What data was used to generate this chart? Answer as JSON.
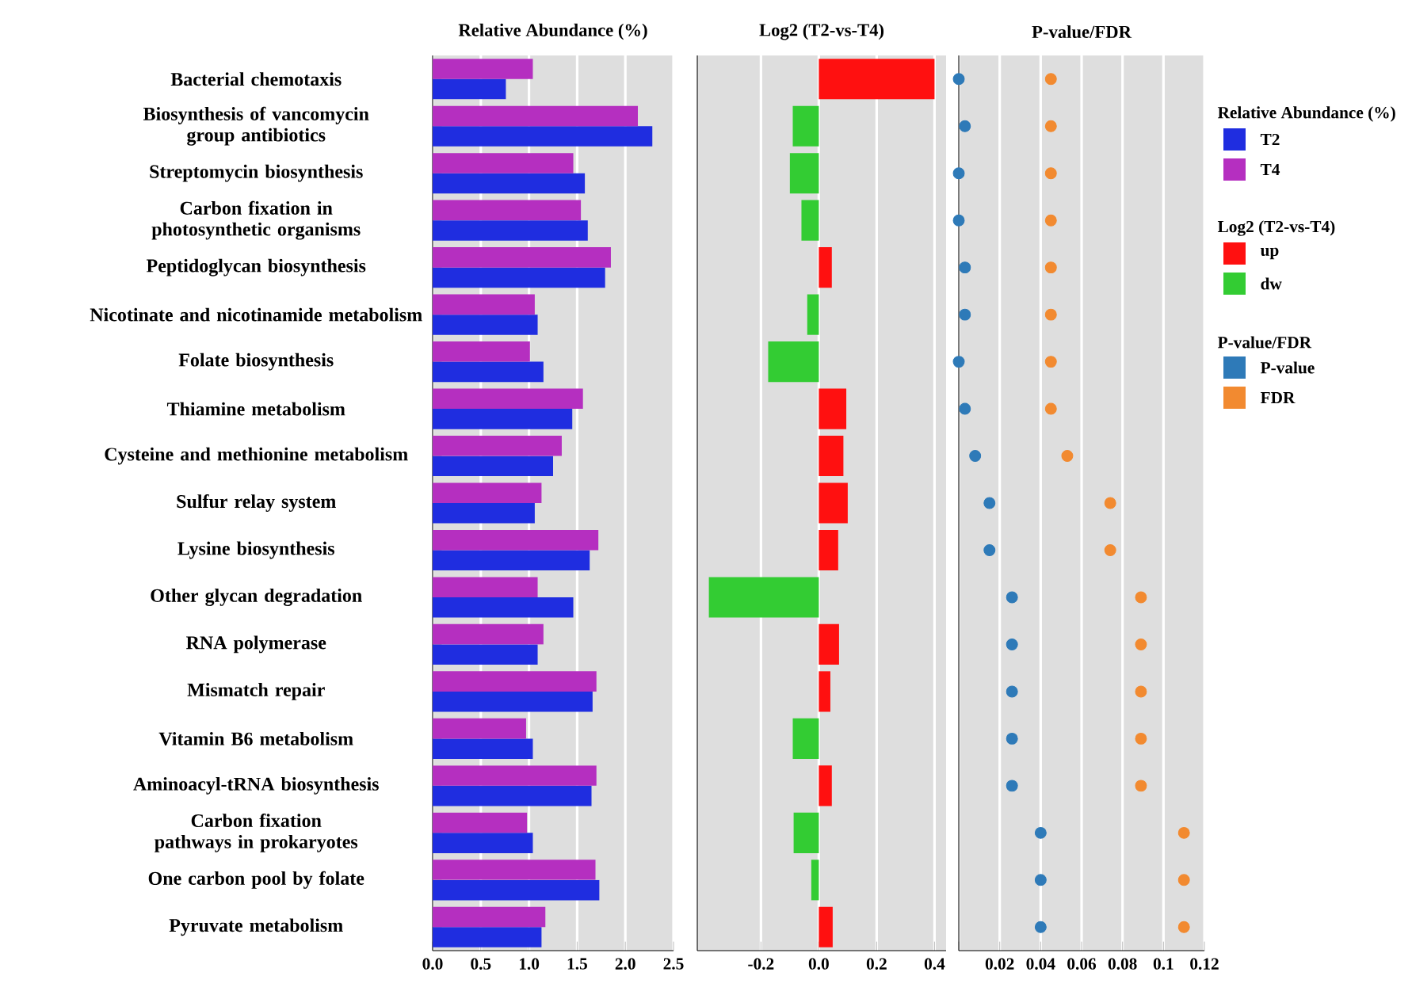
{
  "chart_data": [
    {
      "type": "bar",
      "orientation": "horizontal",
      "title": "Relative Abundance (%)",
      "legend_title": "Relative Abundance (%)",
      "legend": "right",
      "grid": "x",
      "categories": [
        "Bacterial chemotaxis",
        "Biosynthesis of vancomycin group antibiotics",
        "Streptomycin biosynthesis",
        "Carbon fixation in photosynthetic organisms",
        "Peptidoglycan biosynthesis",
        "Nicotinate and nicotinamide metabolism",
        "Folate biosynthesis",
        "Thiamine metabolism",
        "Cysteine and methionine metabolism",
        "Sulfur relay system",
        "Lysine biosynthesis",
        "Other glycan degradation",
        "RNA polymerase",
        "Mismatch repair",
        "Vitamin B6 metabolism",
        "Aminoacyl-tRNA biosynthesis",
        "Carbon fixation pathways in prokaryotes",
        "One carbon pool by folate",
        "Pyruvate metabolism"
      ],
      "series": [
        {
          "name": "T2",
          "color": "#1f2de0",
          "values": [
            0.76,
            2.28,
            1.58,
            1.61,
            1.79,
            1.09,
            1.15,
            1.45,
            1.25,
            1.06,
            1.63,
            1.46,
            1.09,
            1.66,
            1.04,
            1.65,
            1.04,
            1.73,
            1.13
          ]
        },
        {
          "name": "T4",
          "color": "#b52fc0",
          "values": [
            1.04,
            2.13,
            1.46,
            1.54,
            1.85,
            1.06,
            1.01,
            1.56,
            1.34,
            1.13,
            1.72,
            1.09,
            1.15,
            1.7,
            0.97,
            1.7,
            0.98,
            1.69,
            1.17
          ]
        }
      ],
      "xlim": [
        0,
        2.5
      ],
      "xticks": [
        {
          "value": 0,
          "label": "0.0"
        },
        {
          "value": 0.5,
          "label": "0.5"
        },
        {
          "value": 1,
          "label": "1.0"
        },
        {
          "value": 1.5,
          "label": "1.5"
        },
        {
          "value": 2,
          "label": "2.0"
        },
        {
          "value": 2.5,
          "label": "2.5"
        }
      ]
    },
    {
      "type": "bar",
      "orientation": "horizontal",
      "stacked": true,
      "title": "Log2 (T2-vs-T4)",
      "legend_title": "Log2 (T2-vs-T4)",
      "legend": "right",
      "grid": "x",
      "tick_labels": "x",
      "categories": [
        null,
        null,
        null,
        null,
        null,
        null,
        null,
        null,
        null,
        null,
        null,
        null,
        null,
        null,
        null,
        null,
        null,
        null,
        null
      ],
      "series": [
        {
          "name": "up",
          "color": "#ff1010",
          "values": [
            0.4,
            null,
            null,
            null,
            0.045,
            null,
            null,
            0.095,
            0.085,
            0.1,
            0.067,
            null,
            0.07,
            0.04,
            null,
            0.045,
            null,
            null,
            0.048
          ]
        },
        {
          "name": "dw",
          "color": "#33cc33",
          "values": [
            null,
            -0.09,
            -0.1,
            -0.06,
            null,
            -0.04,
            -0.175,
            null,
            null,
            null,
            null,
            -0.38,
            null,
            null,
            -0.09,
            null,
            -0.087,
            -0.026,
            null
          ]
        }
      ],
      "xlim": [
        -0.42,
        0.44
      ],
      "xticks": [
        {
          "value": -0.2,
          "label": "-0.2"
        },
        {
          "value": 0,
          "label": "0.0"
        },
        {
          "value": 0.2,
          "label": "0.2"
        },
        {
          "value": 0.4,
          "label": "0.4"
        }
      ]
    },
    {
      "type": "scatter",
      "orientation": "horizontal",
      "title": "P-value/FDR",
      "legend_title": "P-value/FDR",
      "legend": "right",
      "grid": "x",
      "tick_labels": "x",
      "marker": "circle",
      "categories": [
        null,
        null,
        null,
        null,
        null,
        null,
        null,
        null,
        null,
        null,
        null,
        null,
        null,
        null,
        null,
        null,
        null,
        null,
        null
      ],
      "series": [
        {
          "name": "P-value",
          "color": "#2e7ab8",
          "values": [
            0,
            0.003,
            0,
            0,
            0.003,
            0.003,
            0,
            0.003,
            0.008,
            0.015,
            0.015,
            0.026,
            0.026,
            0.026,
            0.026,
            0.026,
            0.04,
            0.04,
            0.04
          ]
        },
        {
          "name": "FDR",
          "color": "#f28a30",
          "values": [
            0.045,
            0.045,
            0.045,
            0.045,
            0.045,
            0.045,
            0.045,
            0.045,
            0.053,
            0.074,
            0.074,
            0.089,
            0.089,
            0.089,
            0.089,
            0.089,
            0.11,
            0.11,
            0.11
          ]
        }
      ],
      "xlim": [
        0,
        0.12
      ],
      "xticks": [
        {
          "value": 0,
          "label": null
        },
        0.02,
        0.04,
        0.06,
        0.08,
        0.1,
        0.12
      ]
    }
  ]
}
